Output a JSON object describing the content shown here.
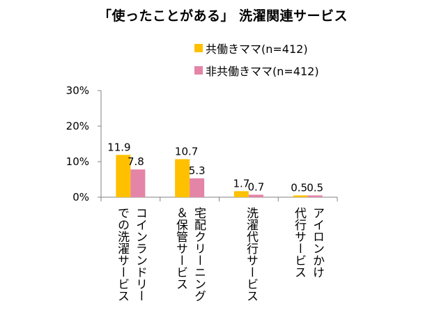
{
  "chart_data": {
    "type": "bar",
    "title": "「使ったことがある」 洗濯関連サービス",
    "categories": [
      "コインランドリー\nでの洗濯サービス",
      "宅配クリーニング\n＆保管サービス",
      "洗濯代行サービス",
      "アイロンかけ\n代行サービス"
    ],
    "series": [
      {
        "name": "共働きママ(n=412)",
        "color": "#FFC000",
        "values": [
          11.9,
          10.7,
          1.7,
          0.5
        ]
      },
      {
        "name": "非共働きママ(n=412)",
        "color": "#E484A6",
        "values": [
          7.8,
          5.3,
          0.7,
          0.5
        ]
      }
    ],
    "value_labels": [
      [
        "11.9",
        "10.7",
        "1.7",
        "0.5"
      ],
      [
        "7.8",
        "5.3",
        "0.7",
        "0.5"
      ]
    ],
    "yticks": [
      "0%",
      "10%",
      "20%",
      "30%"
    ],
    "ylim": [
      0,
      30
    ],
    "xlabel": "",
    "ylabel": "",
    "grid": false,
    "legend": "top-right"
  }
}
